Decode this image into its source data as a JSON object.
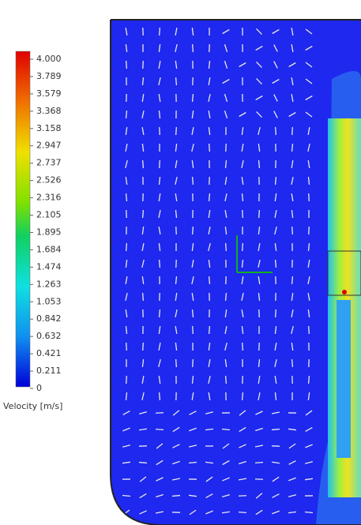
{
  "legend": {
    "title": "Velocity [m/s]",
    "labels": [
      "4.000",
      "3.789",
      "3.579",
      "3.368",
      "3.158",
      "2.947",
      "2.737",
      "2.526",
      "2.316",
      "2.105",
      "1.895",
      "1.684",
      "1.474",
      "1.263",
      "1.053",
      "0.842",
      "0.632",
      "0.421",
      "0.211",
      "0"
    ]
  }
}
